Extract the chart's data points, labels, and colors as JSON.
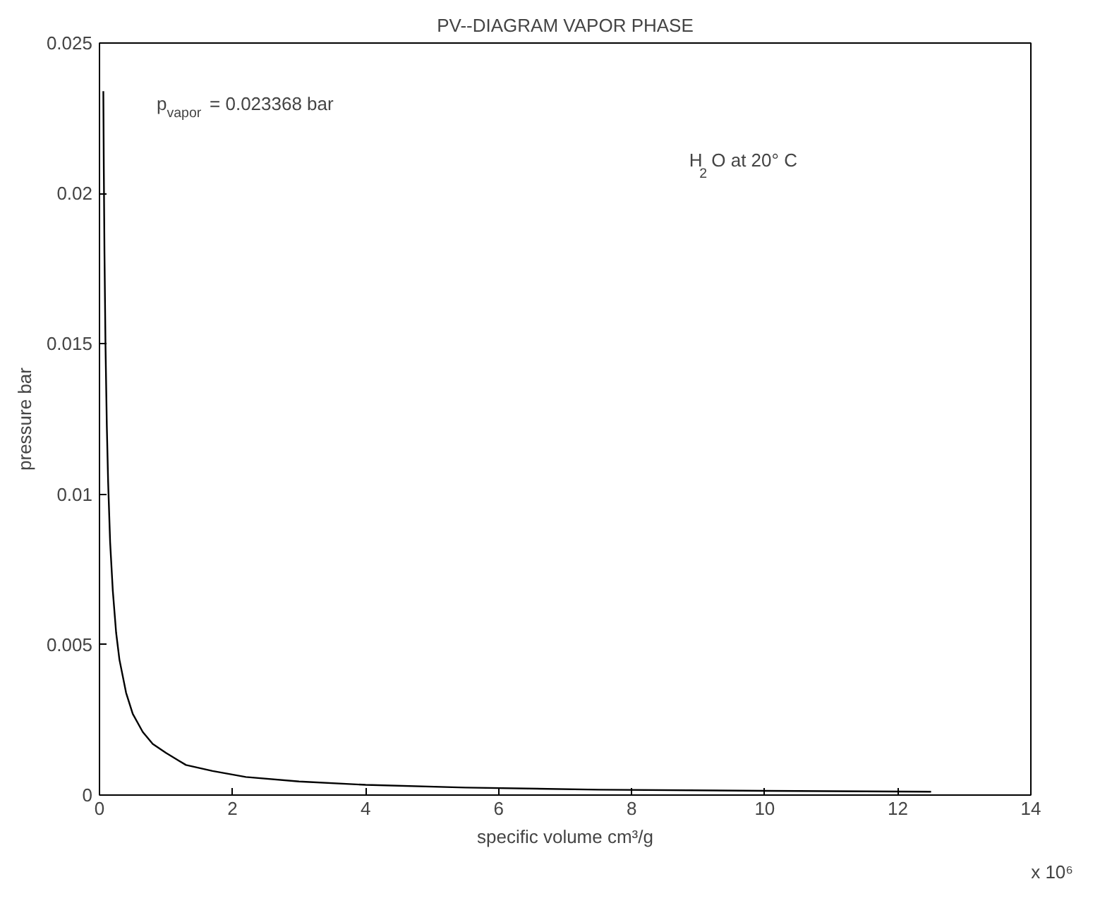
{
  "chart_data": {
    "type": "line",
    "title": "PV--DIAGRAM VAPOR PHASE",
    "xlabel": "specific volume cm³/g",
    "ylabel": "pressure bar",
    "annotations": [
      "p$_{vapor}$ = 0.023368 bar",
      "H$_{2}$O at 20° C",
      "x 10⁶"
    ],
    "x": [
      0.0578,
      0.065,
      0.075,
      0.09,
      0.11,
      0.13,
      0.16,
      0.2,
      0.25,
      0.3,
      0.4,
      0.5,
      0.65,
      0.8,
      1.0,
      1.3,
      1.7,
      2.2,
      3.0,
      4.0,
      5.5,
      7.5,
      10.0,
      12.5
    ],
    "series": [
      {
        "color": "#000000",
        "values": [
          0.0234,
          0.0208,
          0.018,
          0.015,
          0.0123,
          0.0104,
          0.0084,
          0.0068,
          0.0054,
          0.0045,
          0.0034,
          0.0027,
          0.0021,
          0.0017,
          0.0014,
          0.001,
          0.0008,
          0.0006,
          0.00045,
          0.00034,
          0.00025,
          0.00018,
          0.00014,
          0.00011
        ]
      }
    ],
    "xlim": [
      0,
      14
    ],
    "ylim": [
      0,
      0.025
    ],
    "xticks": [
      0,
      2,
      4,
      6,
      8,
      10,
      12,
      14
    ],
    "yticks": [
      0,
      0.005,
      0.01,
      0.015,
      0.02,
      0.025
    ],
    "grid": false,
    "marker": "none",
    "line_style": "solid"
  }
}
